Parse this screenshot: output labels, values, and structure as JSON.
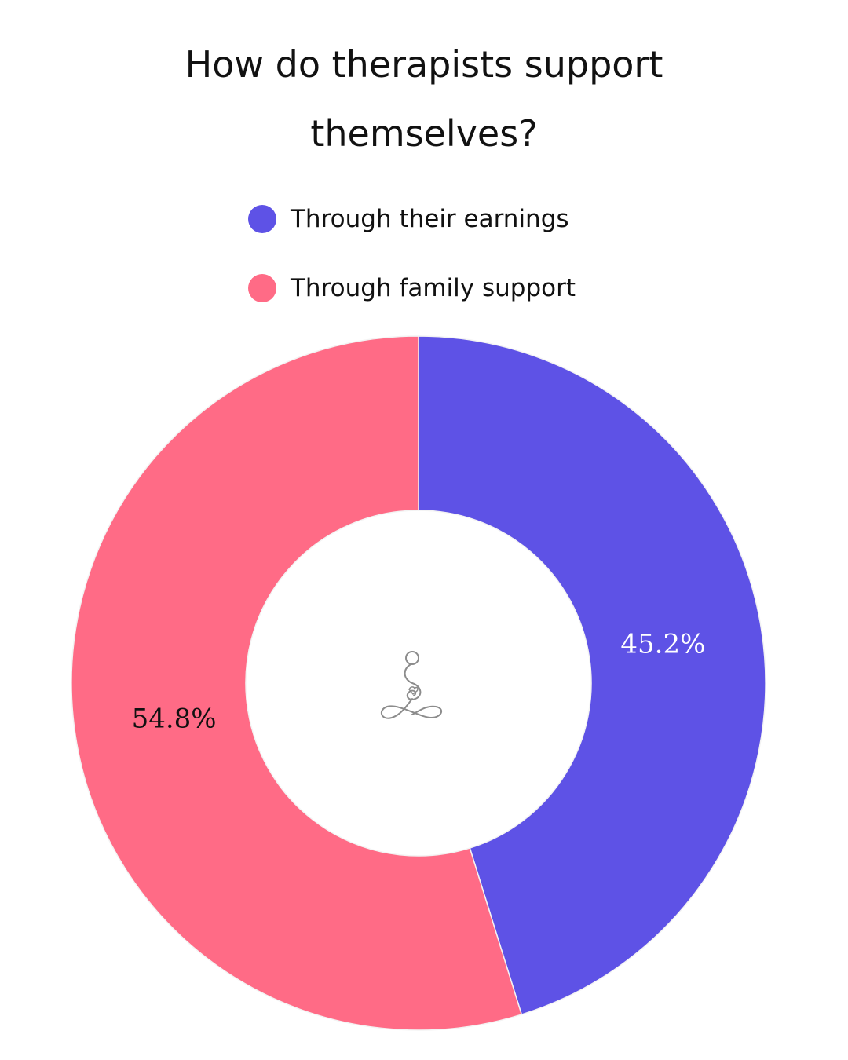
{
  "chart_data": {
    "type": "pie",
    "title_lines": [
      "How do therapists support",
      "themselves?"
    ],
    "series": [
      {
        "name": "Through their earnings",
        "value": 45.2,
        "label": "45.2%",
        "color": "#5e52e6",
        "label_color": "#ffffff"
      },
      {
        "name": "Through family support",
        "value": 54.8,
        "label": "54.8%",
        "color": "#ff6b86",
        "label_color": "#111111"
      }
    ],
    "donut": true,
    "legend_position": "top",
    "center_icon": "meditation-logo-icon"
  }
}
